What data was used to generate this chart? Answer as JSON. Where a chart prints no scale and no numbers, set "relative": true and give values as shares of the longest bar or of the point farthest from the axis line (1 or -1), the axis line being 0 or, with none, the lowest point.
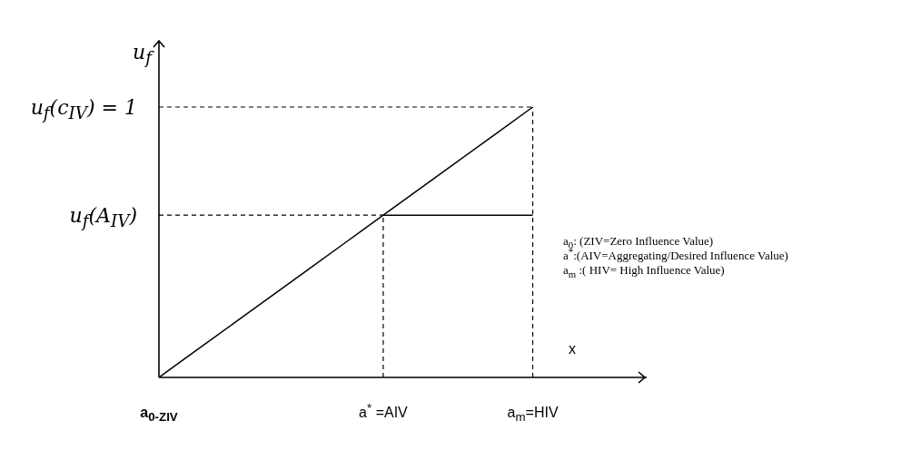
{
  "chart_data": {
    "type": "line",
    "xlabel": "x",
    "ylabel": "u$_{f}$",
    "relative": true,
    "categories": [
      "a$_{0-ZIV}$",
      null,
      null,
      null,
      null,
      null,
      "a$^{*}$ =AIV",
      null,
      null,
      null,
      "a$_{m}$=HIV",
      null,
      null,
      null
    ],
    "series": [
      {
        "color": "#000000",
        "values": [
          0,
          0.1,
          0.2,
          0.3,
          0.4,
          0.5,
          0.6,
          0.7,
          0.8,
          0.9,
          1,
          null,
          null,
          null
        ]
      },
      {
        "color": "#000000",
        "values": [
          null,
          null,
          null,
          null,
          null,
          null,
          0.6,
          0.6,
          0.6,
          0.6,
          0.6,
          null,
          null,
          null
        ]
      }
    ],
    "ref_lines": [
      {
        "axis": "y",
        "value": 1,
        "label": "u$_{f}$(c$_{IV}$) = 1",
        "color": "#000000",
        "line_style": "dashed"
      },
      {
        "axis": "y",
        "value": 0.6,
        "label": "u$_{f}$(A$_{IV}$)",
        "color": "#000000",
        "line_style": "dashed"
      },
      {
        "axis": "x",
        "value": "a$^{*}$ =AIV",
        "color": "#000000",
        "line_style": "dashed"
      },
      {
        "axis": "x",
        "value": "a$_{m}$=HIV",
        "color": "#000000",
        "line_style": "dashed"
      }
    ],
    "annotations": [
      "a$_{0}$: (ZIV=Zero Influence Value)",
      "a$^{*}$:(AIV=Aggregating/Desired Influence Value)",
      "a$_{m}$ :( HIV= High Influence Value)"
    ],
    "marker": "none",
    "line_style": "solid"
  }
}
